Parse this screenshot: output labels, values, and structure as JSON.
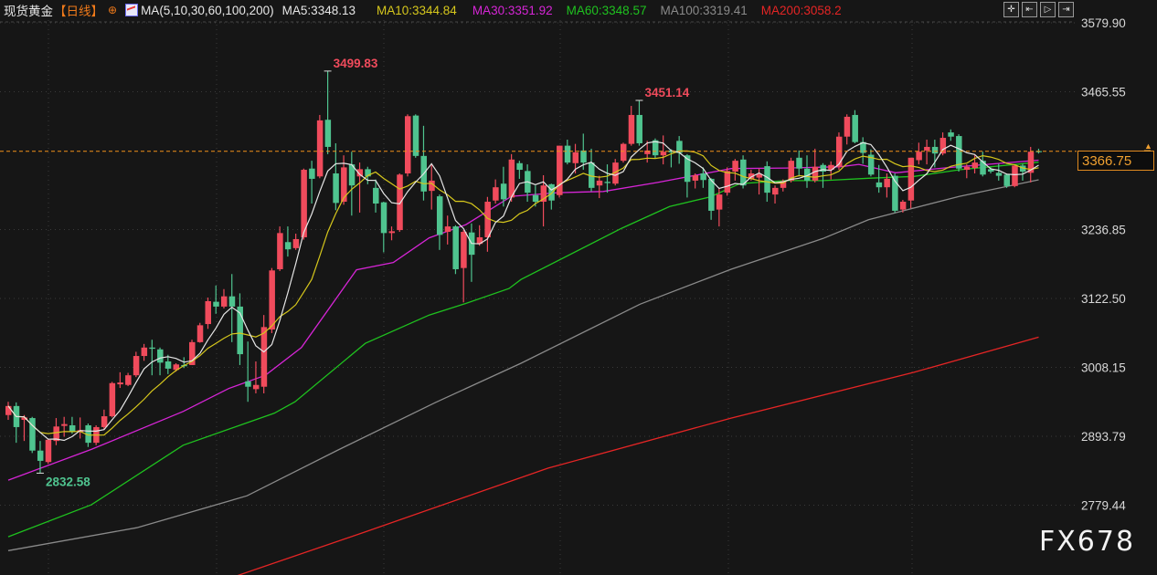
{
  "header": {
    "symbol": "现货黄金",
    "period": "【日线】",
    "ma_params": "MA(5,10,30,60,100,200)",
    "ma5": "MA5:3348.13",
    "ma10": "MA10:3344.84",
    "ma30": "MA30:3351.92",
    "ma60": "MA60:3348.57",
    "ma100": "MA100:3319.41",
    "ma200": "MA200:3058.2"
  },
  "toolbar": {
    "icons": [
      "crosshair-icon",
      "jump-start-icon",
      "play-icon",
      "jump-end-icon"
    ]
  },
  "current_price": "3366.75",
  "watermark": "FX678",
  "colors": {
    "background": "#161616",
    "up": "#f04b5c",
    "down": "#4fc48f",
    "ma5": "#e6e6e6",
    "ma10": "#d6c71c",
    "ma30": "#d625d6",
    "ma60": "#1fc21f",
    "ma100": "#8a8a8a",
    "ma200": "#e52525",
    "price_line": "#f0901a"
  },
  "chart_data": {
    "type": "candlestick",
    "title": "现货黄金【日线】",
    "y_ticks": [
      "3579.90",
      "3465.55",
      "3236.85",
      "3122.50",
      "3008.15",
      "2893.79",
      "2779.44"
    ],
    "ylim": [
      2725,
      3590
    ],
    "grid": true,
    "candles_ohlc": [
      [
        2929,
        2951,
        2921,
        2944
      ],
      [
        2944,
        2950,
        2883,
        2909
      ],
      [
        2921,
        2929,
        2886,
        2925
      ],
      [
        2924,
        2926,
        2866,
        2870
      ],
      [
        2870,
        2886,
        2832.58,
        2853
      ],
      [
        2851,
        2890,
        2848,
        2888
      ],
      [
        2886,
        2924,
        2879,
        2910
      ],
      [
        2911,
        2926,
        2893,
        2914
      ],
      [
        2912,
        2926,
        2898,
        2901
      ],
      [
        2901,
        2925,
        2890,
        2904
      ],
      [
        2912,
        2915,
        2876,
        2883
      ],
      [
        2883,
        2912,
        2879,
        2909
      ],
      [
        2909,
        2938,
        2905,
        2927
      ],
      [
        2927,
        2984,
        2925,
        2982
      ],
      [
        2980,
        3000,
        2974,
        2983
      ],
      [
        2979,
        2999,
        2977,
        2995
      ],
      [
        2995,
        3034,
        2992,
        3027
      ],
      [
        3027,
        3047,
        3019,
        3041
      ],
      [
        3041,
        3054,
        2995,
        3039
      ],
      [
        3038,
        3041,
        2995,
        3016
      ],
      [
        3018,
        3029,
        2997,
        3006
      ],
      [
        3004,
        3015,
        3001,
        3013
      ],
      [
        3012,
        3025,
        3007,
        3010
      ],
      [
        3012,
        3054,
        3012,
        3050
      ],
      [
        3050,
        3082,
        3049,
        3078
      ],
      [
        3080,
        3124,
        3072,
        3118
      ],
      [
        3117,
        3144,
        3097,
        3109
      ],
      [
        3109,
        3138,
        3106,
        3126
      ],
      [
        3126,
        3163,
        3050,
        3109
      ],
      [
        3109,
        3131,
        3012,
        3030
      ],
      [
        2985,
        3051,
        2951,
        2976
      ],
      [
        2972,
        3018,
        2965,
        2979
      ],
      [
        2976,
        3095,
        2965,
        3075
      ],
      [
        3071,
        3173,
        3065,
        3169
      ],
      [
        3171,
        3242,
        3168,
        3231
      ],
      [
        3216,
        3242,
        3192,
        3204
      ],
      [
        3206,
        3230,
        3203,
        3221
      ],
      [
        3224,
        3338,
        3220,
        3336
      ],
      [
        3338,
        3351,
        3280,
        3321
      ],
      [
        3325,
        3427,
        3322,
        3418
      ],
      [
        3419,
        3499.83,
        3362,
        3374
      ],
      [
        3330,
        3380,
        3269,
        3281
      ],
      [
        3283,
        3360,
        3278,
        3340
      ],
      [
        3345,
        3366,
        3260,
        3310
      ],
      [
        3325,
        3348,
        3265,
        3337
      ],
      [
        3337,
        3341,
        3312,
        3325
      ],
      [
        3306,
        3320,
        3265,
        3280
      ],
      [
        3282,
        3283,
        3199,
        3231
      ],
      [
        3231,
        3242,
        3219,
        3234
      ],
      [
        3236,
        3330,
        3233,
        3328
      ],
      [
        3330,
        3428,
        3325,
        3425
      ],
      [
        3426,
        3428,
        3356,
        3359
      ],
      [
        3359,
        3409,
        3285,
        3300
      ],
      [
        3301,
        3345,
        3270,
        3318
      ],
      [
        3292,
        3295,
        3203,
        3228
      ],
      [
        3233,
        3260,
        3212,
        3242
      ],
      [
        3242,
        3244,
        3163,
        3171
      ],
      [
        3173,
        3236,
        3116,
        3233
      ],
      [
        3232,
        3247,
        3150,
        3195
      ],
      [
        3213,
        3244,
        3210,
        3224
      ],
      [
        3224,
        3291,
        3200,
        3283
      ],
      [
        3285,
        3320,
        3280,
        3307
      ],
      [
        3313,
        3341,
        3275,
        3287
      ],
      [
        3290,
        3362,
        3283,
        3353
      ],
      [
        3347,
        3351,
        3321,
        3336
      ],
      [
        3334,
        3345,
        3283,
        3298
      ],
      [
        3294,
        3310,
        3275,
        3283
      ],
      [
        3283,
        3327,
        3242,
        3310
      ],
      [
        3312,
        3313,
        3270,
        3285
      ],
      [
        3294,
        3376,
        3290,
        3376
      ],
      [
        3376,
        3386,
        3345,
        3348
      ],
      [
        3347,
        3379,
        3330,
        3365
      ],
      [
        3368,
        3396,
        3336,
        3348
      ],
      [
        3348,
        3371,
        3300,
        3306
      ],
      [
        3310,
        3326,
        3289,
        3318
      ],
      [
        3316,
        3345,
        3298,
        3314
      ],
      [
        3313,
        3354,
        3310,
        3348
      ],
      [
        3351,
        3381,
        3348,
        3379
      ],
      [
        3379,
        3442,
        3376,
        3427
      ],
      [
        3427,
        3451.14,
        3376,
        3380
      ],
      [
        3362,
        3384,
        3348,
        3368
      ],
      [
        3385,
        3388,
        3355,
        3360
      ],
      [
        3360,
        3393,
        3345,
        3366
      ],
      [
        3368,
        3370,
        3340,
        3365
      ],
      [
        3384,
        3392,
        3346,
        3364
      ],
      [
        3360,
        3362,
        3290,
        3316
      ],
      [
        3318,
        3330,
        3305,
        3327
      ],
      [
        3330,
        3340,
        3306,
        3319
      ],
      [
        3321,
        3322,
        3253,
        3268
      ],
      [
        3270,
        3306,
        3242,
        3295
      ],
      [
        3298,
        3340,
        3293,
        3334
      ],
      [
        3333,
        3354,
        3318,
        3351
      ],
      [
        3353,
        3360,
        3305,
        3310
      ],
      [
        3321,
        3336,
        3318,
        3330
      ],
      [
        3323,
        3338,
        3295,
        3329
      ],
      [
        3342,
        3350,
        3283,
        3298
      ],
      [
        3295,
        3310,
        3280,
        3306
      ],
      [
        3306,
        3320,
        3300,
        3317
      ],
      [
        3318,
        3356,
        3315,
        3351
      ],
      [
        3356,
        3368,
        3325,
        3338
      ],
      [
        3338,
        3360,
        3306,
        3318
      ],
      [
        3318,
        3371,
        3315,
        3341
      ],
      [
        3344,
        3347,
        3306,
        3333
      ],
      [
        3336,
        3350,
        3320,
        3344
      ],
      [
        3341,
        3398,
        3336,
        3391
      ],
      [
        3391,
        3428,
        3378,
        3424
      ],
      [
        3427,
        3435,
        3380,
        3382
      ],
      [
        3382,
        3390,
        3346,
        3364
      ],
      [
        3361,
        3370,
        3325,
        3328
      ],
      [
        3315,
        3344,
        3298,
        3307
      ],
      [
        3307,
        3330,
        3290,
        3321
      ],
      [
        3326,
        3330,
        3265,
        3268
      ],
      [
        3270,
        3286,
        3265,
        3283
      ],
      [
        3285,
        3356,
        3272,
        3356
      ],
      [
        3352,
        3381,
        3345,
        3366
      ],
      [
        3368,
        3386,
        3345,
        3374
      ],
      [
        3374,
        3386,
        3340,
        3363
      ],
      [
        3363,
        3398,
        3360,
        3389
      ],
      [
        3398,
        3403,
        3384,
        3391
      ],
      [
        3392,
        3395,
        3333,
        3338
      ],
      [
        3336,
        3345,
        3322,
        3341
      ],
      [
        3339,
        3360,
        3330,
        3348
      ],
      [
        3351,
        3366,
        3325,
        3328
      ],
      [
        3337,
        3340,
        3330,
        3333
      ],
      [
        3331,
        3346,
        3318,
        3326
      ],
      [
        3328,
        3330,
        3306,
        3309
      ],
      [
        3309,
        3345,
        3307,
        3343
      ],
      [
        3343,
        3346,
        3318,
        3333
      ],
      [
        3331,
        3374,
        3315,
        3366
      ],
      [
        3367,
        3371,
        3363,
        3366.75
      ]
    ],
    "moving_averages": {
      "ma30": [
        [
          0,
          2821
        ],
        [
          10.4,
          2872
        ],
        [
          21.9,
          2935
        ],
        [
          27.6,
          2973
        ],
        [
          32.2,
          2995
        ],
        [
          36.7,
          3041
        ],
        [
          43.6,
          3170
        ],
        [
          48.2,
          3182
        ],
        [
          52.7,
          3223
        ],
        [
          57.3,
          3245
        ],
        [
          63,
          3292
        ],
        [
          68.8,
          3298
        ],
        [
          74.5,
          3300
        ],
        [
          81.3,
          3315
        ],
        [
          90.5,
          3338
        ],
        [
          97.4,
          3339
        ],
        [
          104.2,
          3341
        ],
        [
          106.5,
          3345
        ],
        [
          111.1,
          3331
        ],
        [
          118,
          3340
        ],
        [
          129,
          3351.92
        ]
      ],
      "ma60": [
        [
          0,
          2727
        ],
        [
          10.4,
          2780
        ],
        [
          21.9,
          2879
        ],
        [
          33.3,
          2932
        ],
        [
          35.9,
          2951
        ],
        [
          44.7,
          3048
        ],
        [
          52.7,
          3095
        ],
        [
          57,
          3113
        ],
        [
          62.7,
          3139
        ],
        [
          64.2,
          3154
        ],
        [
          76.8,
          3239
        ],
        [
          82.8,
          3275
        ],
        [
          87.9,
          3291
        ],
        [
          91.6,
          3313
        ],
        [
          97.4,
          3318
        ],
        [
          102,
          3318
        ],
        [
          107.7,
          3322
        ],
        [
          113.4,
          3325
        ],
        [
          119.1,
          3336
        ],
        [
          129,
          3348.57
        ]
      ],
      "ma100": [
        [
          0,
          2704
        ],
        [
          16.1,
          2742
        ],
        [
          29.9,
          2795
        ],
        [
          41.3,
          2871
        ],
        [
          53.5,
          2950
        ],
        [
          64.2,
          3015
        ],
        [
          79.1,
          3113
        ],
        [
          90.5,
          3171
        ],
        [
          102,
          3222
        ],
        [
          107.7,
          3253
        ],
        [
          119.1,
          3292
        ],
        [
          129,
          3319.41
        ]
      ],
      "ma200": [
        [
          27,
          2655
        ],
        [
          44.7,
          2735
        ],
        [
          67.6,
          2841
        ],
        [
          90.5,
          2924
        ],
        [
          113.4,
          3000
        ],
        [
          129,
          3058.2
        ]
      ]
    },
    "annotations": [
      {
        "text": "3499.83",
        "candle": 40,
        "type": "high"
      },
      {
        "text": "3451.14",
        "candle": 79,
        "type": "high"
      },
      {
        "text": "2832.58",
        "candle": 4,
        "type": "low"
      }
    ]
  }
}
